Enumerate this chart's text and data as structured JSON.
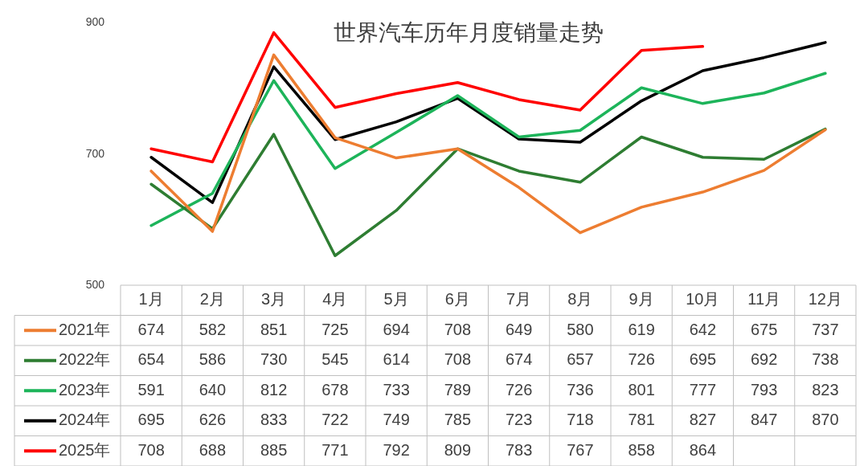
{
  "chart_data": {
    "type": "line",
    "title": "世界汽车历年月度销量走势",
    "categories": [
      "1月",
      "2月",
      "3月",
      "4月",
      "5月",
      "6月",
      "7月",
      "8月",
      "9月",
      "10月",
      "11月",
      "12月"
    ],
    "series": [
      {
        "name": "2021年",
        "color": "#ed7d31",
        "values": [
          674,
          582,
          851,
          725,
          694,
          708,
          649,
          580,
          619,
          642,
          675,
          737
        ]
      },
      {
        "name": "2022年",
        "color": "#2e7d32",
        "values": [
          654,
          586,
          730,
          545,
          614,
          708,
          674,
          657,
          726,
          695,
          692,
          738
        ]
      },
      {
        "name": "2023年",
        "color": "#1db45a",
        "values": [
          591,
          640,
          812,
          678,
          733,
          789,
          726,
          736,
          801,
          777,
          793,
          823
        ]
      },
      {
        "name": "2024年",
        "color": "#000000",
        "values": [
          695,
          626,
          833,
          722,
          749,
          785,
          723,
          718,
          781,
          827,
          847,
          870
        ]
      },
      {
        "name": "2025年",
        "color": "#ff0000",
        "values": [
          708,
          688,
          885,
          771,
          792,
          809,
          783,
          767,
          858,
          864,
          null,
          null
        ]
      }
    ],
    "ylim": [
      500,
      900
    ],
    "yticks": [
      500,
      700,
      900
    ],
    "grid": false,
    "legend": "bottom left",
    "data_labels": true,
    "marker": "none",
    "line_style": "solid"
  }
}
